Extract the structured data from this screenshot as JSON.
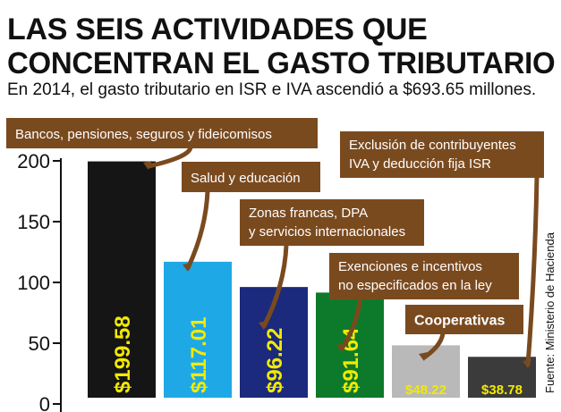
{
  "title_line1": "LAS SEIS ACTIVIDADES QUE",
  "title_line2": "CONCENTRAN EL GASTO TRIBUTARIO",
  "subtitle": "En 2014, el gasto tributario en ISR e IVA ascendió a $693.65 millones.",
  "source": "Fuente: Ministerio de Hacienda",
  "colors": {
    "callout": "#7a4a1f",
    "label_yellow": "#f2ea00",
    "bars": [
      "#151515",
      "#1ea9e6",
      "#1b2a7c",
      "#0c7a2a",
      "#b9b9b9",
      "#3b3b3b"
    ]
  },
  "chart_data": {
    "type": "bar",
    "categories": [
      [
        "Bancos, pensiones, seguros y fideicomisos"
      ],
      [
        "Salud y educación"
      ],
      [
        "Zonas francas, DPA",
        "y servicios internacionales"
      ],
      [
        "Exenciones e incentivos",
        "no especificados en la ley"
      ],
      [
        "Cooperativas"
      ],
      [
        "Exclusión de contribuyentes",
        "IVA y deducción fija ISR"
      ]
    ],
    "values": [
      199.58,
      117.01,
      96.22,
      91.64,
      48.22,
      38.78
    ],
    "value_labels": [
      "$199.58",
      "$117.01",
      "$96.22",
      "$91.64",
      "$48.22",
      "$38.78"
    ],
    "y_ticks": [
      "0",
      "50",
      "100",
      "150",
      "200"
    ],
    "ylim": [
      0,
      200
    ],
    "grid": false,
    "legend": "none"
  }
}
